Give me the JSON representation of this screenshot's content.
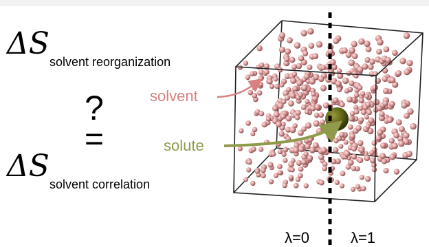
{
  "equation": {
    "top_symbol": "ΔS",
    "top_subscript": "solvent reorganization",
    "question": "?",
    "equals": "=",
    "bottom_symbol": "ΔS",
    "bottom_subscript": "solvent correlation"
  },
  "labels": {
    "solvent": "solvent",
    "solute": "solute",
    "lambda_left": "λ=0",
    "lambda_right": "λ=1"
  }
}
